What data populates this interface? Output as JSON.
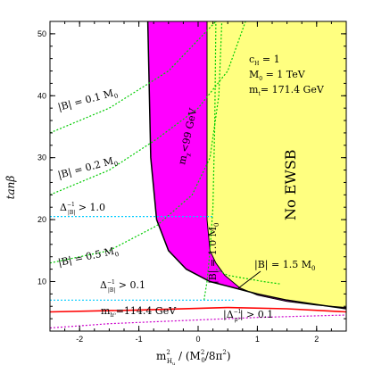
{
  "chart_data": {
    "type": "line",
    "xlabel_main": "m",
    "xlabel_sub": "H",
    "xlabel_subsub": "u",
    "xlabel_sup": "2",
    "xlabel_rest": " / (M",
    "xlabel_rest_sub": "0",
    "xlabel_rest_sup": "2",
    "xlabel_rest2": "/8π",
    "xlabel_rest2_sup": "2",
    "xlabel_close": ")",
    "ylabel": "tanβ",
    "xlim": [
      -2.5,
      2.5
    ],
    "ylim": [
      2,
      52
    ],
    "xticks": [
      -2,
      -1,
      0,
      1,
      2
    ],
    "yticks": [
      10,
      20,
      30,
      40,
      50
    ],
    "colors": {
      "magenta": "#ff00ff",
      "yellow": "#ffff80",
      "black": "#000000",
      "green": "#00cc00",
      "cyan": "#00ccff",
      "red": "#ff0000",
      "purple": "#cc00cc"
    },
    "regions": {
      "no_ewsb_left_boundary": [
        [
          0.15,
          52
        ],
        [
          0.15,
          20
        ],
        [
          0.2,
          15
        ],
        [
          0.3,
          13
        ],
        [
          0.45,
          11
        ],
        [
          0.7,
          9
        ],
        [
          1.0,
          7.8
        ],
        [
          1.5,
          6.8
        ],
        [
          2.0,
          6.2
        ],
        [
          2.5,
          5.8
        ]
      ],
      "mchi_boundary": [
        [
          -0.85,
          52
        ],
        [
          -0.8,
          30
        ],
        [
          -0.7,
          20
        ],
        [
          -0.5,
          15
        ],
        [
          -0.2,
          12
        ],
        [
          0.2,
          10
        ],
        [
          0.6,
          9
        ],
        [
          1.0,
          8
        ],
        [
          1.5,
          7
        ],
        [
          2.0,
          6.3
        ],
        [
          2.5,
          5.6
        ]
      ]
    },
    "curves": [
      {
        "name": "|B| = 0.1 M0",
        "color": "#00cc00",
        "points": [
          [
            -2.5,
            34
          ],
          [
            -1.5,
            38
          ],
          [
            -0.5,
            44
          ],
          [
            0.3,
            52
          ]
        ]
      },
      {
        "name": "|B| = 0.2 M0",
        "color": "#00cc00",
        "points": [
          [
            -2.5,
            24
          ],
          [
            -1.5,
            28
          ],
          [
            -0.7,
            33
          ],
          [
            0,
            38
          ],
          [
            0.5,
            44
          ],
          [
            0.8,
            52
          ]
        ]
      },
      {
        "name": "|B| = 0.5 M0",
        "color": "#00cc00",
        "points": [
          [
            -2.5,
            13
          ],
          [
            -1.5,
            15
          ],
          [
            -0.7,
            19
          ],
          [
            -0.1,
            24
          ],
          [
            0.2,
            30
          ],
          [
            0.35,
            40
          ],
          [
            0.4,
            52
          ]
        ]
      },
      {
        "name": "|B| = 1.0 M0",
        "color": "#00cc00",
        "points": [
          [
            0.1,
            7
          ],
          [
            0.15,
            10
          ],
          [
            0.2,
            15
          ],
          [
            0.25,
            22
          ],
          [
            0.28,
            35
          ],
          [
            0.3,
            52
          ]
        ]
      },
      {
        "name": "|B| = 1.5 M0",
        "color": "#00cc00",
        "points": [
          [
            0.3,
            12
          ],
          [
            0.5,
            11
          ],
          [
            0.8,
            10.5
          ],
          [
            1.1,
            10
          ],
          [
            1.4,
            9.6
          ]
        ]
      },
      {
        "name": "Δ|B| > 1.0",
        "color": "#00ccff",
        "points": [
          [
            -2.5,
            20.5
          ],
          [
            0,
            20.5
          ],
          [
            0.25,
            20.5
          ]
        ]
      },
      {
        "name": "Δ|B| > 0.1",
        "color": "#00ccff",
        "points": [
          [
            -2.5,
            7
          ],
          [
            0.6,
            7
          ]
        ]
      },
      {
        "name": "mh0 = 114.4 GeV",
        "color": "#ff0000",
        "points": [
          [
            -2.5,
            5.1
          ],
          [
            -1,
            5.4
          ],
          [
            0.5,
            5.8
          ],
          [
            1.5,
            5.6
          ],
          [
            2.5,
            5.1
          ]
        ]
      },
      {
        "name": "Δ > 0.1 lower",
        "color": "#cc00cc",
        "points": [
          [
            -2.5,
            2.5
          ],
          [
            -1.5,
            3.2
          ],
          [
            0,
            3.8
          ],
          [
            1,
            4.2
          ],
          [
            2.5,
            4.6
          ]
        ]
      }
    ],
    "annotations": {
      "b01": "|B| = 0.1 M",
      "b01_sub": "0",
      "b02": "|B| = 0.2 M",
      "b02_sub": "0",
      "b05": "|B| = 0.5 M",
      "b05_sub": "0",
      "b10": "|B| = 1.0 M",
      "b10_sub": "0",
      "b15": "|B| = 1.5 M",
      "b15_sub": "0",
      "delta_a": "Δ",
      "delta_a_sub": "|B|",
      "delta_a_sup": "−1",
      "delta_a_val": " > 1.0",
      "delta_b": "Δ",
      "delta_b_sub": "|B|",
      "delta_b_sup": "−1",
      "delta_b_val": " > 0.1",
      "delta_c_open": "|Δ",
      "delta_c_sub": "μ²",
      "delta_c_sup": "−1",
      "delta_c_val": "| > 0.1",
      "mh": "m",
      "mh_sub": "h⁰",
      "mh_val": "=114.4 GeV",
      "mchi": "m",
      "mchi_sub": "χ",
      "mchi_val": "<99 GeV",
      "no_ewsb": "No EWSB",
      "c_hu": "c",
      "c_hu_sub": "H",
      "c_hu_val": " = 1",
      "m0": "M",
      "m0_sub": "0",
      "m0_val": " = 1 TeV",
      "mt": "m",
      "mt_sub": "t",
      "mt_val": "= 171.4 GeV"
    }
  }
}
